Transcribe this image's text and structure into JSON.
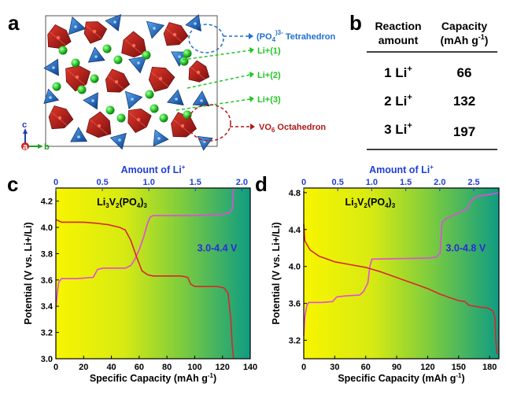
{
  "panels": {
    "a": {
      "letter": "a",
      "labels": {
        "po4_main": "(PO",
        "po4_sub": "4",
        "po4_sup": ")3-",
        "po4_rest": " Tetrahedron",
        "li1": "Li+(1)",
        "li2": "Li+(2)",
        "li3": "Li+(3)",
        "vo6_main": "VO",
        "vo6_sub": "6",
        "vo6_rest": " Octahedron"
      },
      "axes": {
        "c": "c",
        "a": "a",
        "b": "b"
      },
      "colors": {
        "po4": "#1f6fd0",
        "li": "#22c522",
        "vo6": "#b01818"
      }
    },
    "b": {
      "letter": "b",
      "header": {
        "col1_line1": "Reaction",
        "col1_line2": "amount",
        "col2_line1": "Capacity",
        "col2_line2": "(mAh g",
        "col2_line2_sup": "-1",
        "col2_line2_end": ")"
      },
      "rows": [
        {
          "amount": "1 Li",
          "amount_sup": "+",
          "capacity": "66"
        },
        {
          "amount": "2 Li",
          "amount_sup": "+",
          "capacity": "132"
        },
        {
          "amount": "3 Li",
          "amount_sup": "+",
          "capacity": "197"
        }
      ]
    }
  },
  "chart_data": [
    {
      "panel": "c",
      "type": "line",
      "letter": "c",
      "top_axis_label": "Amount of Li",
      "top_axis_sup": "+",
      "top_ticks": [
        "0",
        "0.5",
        "1.0",
        "1.5",
        "2.0"
      ],
      "top_range": [
        0,
        2.09
      ],
      "xlabel": "Specific Capacity (mAh g",
      "xlabel_sup": "-1",
      "xlabel_end": ")",
      "ylabel": "Potential (V vs. Li+/Li)",
      "xlim": [
        0,
        140
      ],
      "ylim": [
        3.0,
        4.3
      ],
      "x_ticks": [
        "0",
        "20",
        "40",
        "60",
        "80",
        "100",
        "120",
        "140"
      ],
      "y_ticks": [
        "3.0",
        "3.2",
        "3.4",
        "3.6",
        "3.8",
        "4.0",
        "4.2"
      ],
      "compound": {
        "p1": "Li",
        "s1": "3",
        "p2": "V",
        "s2": "2",
        "p3": "(PO",
        "s3": "4",
        "p4": ")",
        "s4": "3"
      },
      "range_label": "3.0-4.4 V",
      "series": [
        {
          "name": "charge",
          "color": "#e24ae0",
          "points": [
            [
              0,
              3.38
            ],
            [
              1,
              3.5
            ],
            [
              2,
              3.58
            ],
            [
              4,
              3.61
            ],
            [
              15,
              3.61
            ],
            [
              27,
              3.62
            ],
            [
              30,
              3.68
            ],
            [
              34,
              3.69
            ],
            [
              44,
              3.69
            ],
            [
              50,
              3.69
            ],
            [
              54,
              3.71
            ],
            [
              57,
              3.76
            ],
            [
              60,
              3.83
            ],
            [
              63,
              3.92
            ],
            [
              66,
              4.03
            ],
            [
              68,
              4.08
            ],
            [
              70,
              4.09
            ],
            [
              100,
              4.09
            ],
            [
              120,
              4.1
            ],
            [
              125,
              4.11
            ],
            [
              127,
              4.14
            ],
            [
              128,
              4.3
            ]
          ]
        },
        {
          "name": "discharge",
          "color": "#d8282a",
          "points": [
            [
              0,
              4.06
            ],
            [
              4,
              4.04
            ],
            [
              20,
              4.04
            ],
            [
              31,
              4.03
            ],
            [
              38,
              4.02
            ],
            [
              46,
              4.0
            ],
            [
              50,
              3.98
            ],
            [
              54,
              3.9
            ],
            [
              58,
              3.78
            ],
            [
              62,
              3.67
            ],
            [
              66,
              3.64
            ],
            [
              70,
              3.63
            ],
            [
              90,
              3.63
            ],
            [
              95,
              3.62
            ],
            [
              97,
              3.57
            ],
            [
              100,
              3.55
            ],
            [
              116,
              3.55
            ],
            [
              121,
              3.54
            ],
            [
              124,
              3.5
            ],
            [
              126,
              3.3
            ],
            [
              127,
              3.1
            ],
            [
              128,
              3.0
            ]
          ]
        }
      ]
    },
    {
      "panel": "d",
      "type": "line",
      "letter": "d",
      "top_axis_label": "Amount of Li",
      "top_axis_sup": "+",
      "top_ticks": [
        "0",
        "0.5",
        "1.0",
        "1.5",
        "2.0",
        "2.5"
      ],
      "top_range": [
        0,
        2.87
      ],
      "xlabel": "Specific Capacity (mAh g",
      "xlabel_sup": "-1",
      "xlabel_end": ")",
      "ylabel": "Potential (V vs. Li+/Li)",
      "xlim": [
        0,
        189
      ],
      "ylim": [
        3.0,
        4.85
      ],
      "x_ticks": [
        "0",
        "30",
        "60",
        "90",
        "120",
        "150",
        "180"
      ],
      "y_ticks": [
        "3.2",
        "3.6",
        "4.0",
        "4.4",
        "4.8"
      ],
      "compound": {
        "p1": "Li",
        "s1": "3",
        "p2": "V",
        "s2": "2",
        "p3": "(PO",
        "s3": "4",
        "p4": ")",
        "s4": "3"
      },
      "range_label": "3.0-4.8 V",
      "series": [
        {
          "name": "charge",
          "color": "#e24ae0",
          "points": [
            [
              0,
              3.25
            ],
            [
              1,
              3.45
            ],
            [
              3,
              3.58
            ],
            [
              5,
              3.61
            ],
            [
              18,
              3.61
            ],
            [
              28,
              3.62
            ],
            [
              32,
              3.67
            ],
            [
              40,
              3.68
            ],
            [
              54,
              3.69
            ],
            [
              58,
              3.73
            ],
            [
              62,
              3.82
            ],
            [
              64,
              4.0
            ],
            [
              66,
              4.08
            ],
            [
              70,
              4.08
            ],
            [
              120,
              4.09
            ],
            [
              128,
              4.1
            ],
            [
              132,
              4.14
            ],
            [
              134,
              4.48
            ],
            [
              138,
              4.52
            ],
            [
              150,
              4.58
            ],
            [
              158,
              4.62
            ],
            [
              162,
              4.71
            ],
            [
              168,
              4.76
            ],
            [
              180,
              4.78
            ],
            [
              189,
              4.8
            ]
          ]
        },
        {
          "name": "discharge",
          "color": "#d8282a",
          "points": [
            [
              0,
              4.46
            ],
            [
              1,
              4.28
            ],
            [
              6,
              4.18
            ],
            [
              15,
              4.11
            ],
            [
              30,
              4.05
            ],
            [
              45,
              4.02
            ],
            [
              60,
              3.99
            ],
            [
              75,
              3.94
            ],
            [
              90,
              3.88
            ],
            [
              105,
              3.82
            ],
            [
              120,
              3.76
            ],
            [
              132,
              3.7
            ],
            [
              142,
              3.66
            ],
            [
              150,
              3.63
            ],
            [
              156,
              3.62
            ],
            [
              160,
              3.58
            ],
            [
              170,
              3.56
            ],
            [
              178,
              3.55
            ],
            [
              183,
              3.52
            ],
            [
              185,
              3.45
            ],
            [
              186,
              3.2
            ],
            [
              187,
              3.05
            ]
          ]
        }
      ]
    }
  ]
}
